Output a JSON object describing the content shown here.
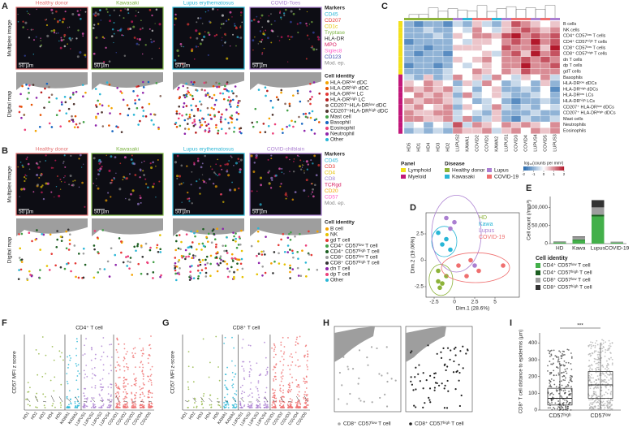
{
  "panel_letters": [
    "A",
    "B",
    "C",
    "D",
    "E",
    "F",
    "G",
    "H",
    "I"
  ],
  "panels": {
    "A": {
      "columns": [
        {
          "title": "Healthy donor",
          "color": "#e57373"
        },
        {
          "title": "Kawasaki",
          "color": "#7cb342"
        },
        {
          "title": "Lupus erythematosus",
          "color": "#29b6d6"
        },
        {
          "title": "COVID-Toes",
          "color": "#ab7fd1"
        }
      ],
      "row_labels": [
        "Multiplex image",
        "Digital map"
      ],
      "scale_bar": "50 µm",
      "markers_title": "Markers",
      "markers": [
        {
          "name": "CD45",
          "color": "#29b6d6"
        },
        {
          "name": "CD207",
          "color": "#e53935"
        },
        {
          "name": "CD1c",
          "color": "#e6c200"
        },
        {
          "name": "Tryptase",
          "color": "#7cb342"
        },
        {
          "name": "HLA-DR",
          "color": "#222222"
        },
        {
          "name": "MPO",
          "color": "#d81b60"
        },
        {
          "name": "Siglec8",
          "color": "#ff5fc8"
        },
        {
          "name": "CD123",
          "color": "#3949ab"
        },
        {
          "name": "Mod. ep.",
          "color": "#888888"
        }
      ],
      "identity_title": "Cell identity",
      "identities": [
        {
          "name": "HLA-DRˡᵒʷ dDC",
          "color": "#f4a300"
        },
        {
          "name": "HLA-DRʰⁱᵍʰ dDC",
          "color": "#e65100"
        },
        {
          "name": "HLA-DRˡᵒʷ LC",
          "color": "#e53935"
        },
        {
          "name": "HLA-DRʰⁱᵍʰ LC",
          "color": "#b71c1c"
        },
        {
          "name": "CD207⁺HLA-DRˡᵒʷ dDC",
          "color": "#8d6e63"
        },
        {
          "name": "CD207⁺HLA-DRʰⁱᵍʰ dDC",
          "color": "#4e342e"
        },
        {
          "name": "Mast cell",
          "color": "#43a047"
        },
        {
          "name": "Basophil",
          "color": "#1565c0"
        },
        {
          "name": "Eosinophil",
          "color": "#ec407a"
        },
        {
          "name": "Neutrophil",
          "color": "#8e24aa"
        },
        {
          "name": "Other",
          "color": "#29b6d6"
        }
      ]
    },
    "B": {
      "columns": [
        {
          "title": "Healthy donor",
          "color": "#e57373"
        },
        {
          "title": "Kawasaki",
          "color": "#7cb342"
        },
        {
          "title": "Lupus erythematosus",
          "color": "#29b6d6"
        },
        {
          "title": "COVID-chilblain",
          "color": "#ab7fd1"
        }
      ],
      "row_labels": [
        "Multiplex image",
        "Digital map"
      ],
      "scale_bar": "50 µm",
      "markers_title": "Markers",
      "markers": [
        {
          "name": "CD45",
          "color": "#29b6d6"
        },
        {
          "name": "CD3",
          "color": "#e53935"
        },
        {
          "name": "CD4",
          "color": "#e6c200"
        },
        {
          "name": "CD8",
          "color": "#9c7fd1"
        },
        {
          "name": "TCRgd",
          "color": "#d81b60"
        },
        {
          "name": "CD20",
          "color": "#f4a300"
        },
        {
          "name": "CD57",
          "color": "#ff5fc8"
        },
        {
          "name": "Mod. ep.",
          "color": "#888888"
        }
      ],
      "identity_title": "Cell identity",
      "identities": [
        {
          "name": "B cell",
          "color": "#f4a300"
        },
        {
          "name": "NK",
          "color": "#e6c200"
        },
        {
          "name": "gd T cell",
          "color": "#e53935"
        },
        {
          "name": "CD4⁺ CD57ˡᵒʷ T cell",
          "color": "#43a047"
        },
        {
          "name": "CD4⁺ CD57ʰⁱᵍʰ T cell",
          "color": "#1b5e20"
        },
        {
          "name": "CD8⁺ CD57ˡᵒʷ T cell",
          "color": "#9e9e9e"
        },
        {
          "name": "CD8⁺ CD57ʰⁱᵍʰ T cell",
          "color": "#333333"
        },
        {
          "name": "dn T cell",
          "color": "#8e24aa"
        },
        {
          "name": "dp T cell",
          "color": "#ec407a"
        },
        {
          "name": "Other",
          "color": "#29b6d6"
        }
      ]
    },
    "F": {
      "title": "CD4⁺ T cell",
      "y_label": "CD57 MFI z score",
      "categories": [
        "HD1",
        "HD2",
        "HD3",
        "HD4",
        "HD5",
        "KAWA1",
        "KAWA2",
        "LUPUS1",
        "LUPUS2",
        "LUPUS3",
        "LUPUS4",
        "COVID1",
        "COVID2",
        "COVID3",
        "COVID4",
        "COVID5"
      ],
      "category_group": [
        0,
        0,
        0,
        0,
        0,
        1,
        1,
        2,
        2,
        2,
        2,
        3,
        3,
        3,
        3,
        3
      ],
      "group_colors": [
        "#8db33a",
        "#29b6d6",
        "#ab7fd1",
        "#ef6f6f"
      ]
    },
    "G": {
      "title": "CD8⁺ T cell",
      "y_label": "CD57 MFI z-score",
      "categories": [
        "HD1",
        "HD2",
        "HD3",
        "HD4",
        "HD5",
        "KAWA1",
        "KAWA2",
        "LUPUS1",
        "LUPUS2",
        "LUPUS3",
        "LUPUS4",
        "COVID1",
        "COVID2",
        "COVID3",
        "COVID4",
        "COVID5"
      ],
      "category_group": [
        0,
        0,
        0,
        0,
        0,
        1,
        1,
        2,
        2,
        2,
        2,
        3,
        3,
        3,
        3,
        3
      ],
      "group_colors": [
        "#8db33a",
        "#29b6d6",
        "#ab7fd1",
        "#ef6f6f"
      ]
    },
    "H": {
      "legends": [
        {
          "name": "CD8⁺ CD57ˡᵒʷ T cell",
          "color": "#aaaaaa"
        },
        {
          "name": "CD8⁺ CD57ʰⁱᵍʰ T cell",
          "color": "#222222"
        }
      ]
    }
  },
  "chart_data": [
    {
      "type": "heatmap",
      "columns": [
        "HD5",
        "HD1",
        "HD4",
        "HD3",
        "HD2",
        "LUPUS2",
        "KAWA1",
        "COVID2",
        "COVID1",
        "KAWA2",
        "LUPUS1",
        "COVID3",
        "COVID4",
        "LUPUS4",
        "COVID5",
        "LUPUS3"
      ],
      "column_group": [
        0,
        0,
        0,
        0,
        0,
        2,
        1,
        3,
        3,
        1,
        2,
        3,
        3,
        2,
        3,
        2
      ],
      "rows": [
        "B cells",
        "NK cells",
        "CD4⁺ CD57ˡᵒʷ T cells",
        "CD4⁺ CD57ʰⁱᵍʰ T cells",
        "CD8⁺ CD57ˡᵒʷ T cells",
        "CD8⁺ CD57ʰⁱᵍʰ T cells",
        "dn T cells",
        "dp T cells",
        "gdT cells",
        "Basophils",
        "HLA-DRˡᵒʷ dDCs",
        "HLA-DRʰⁱᵍʰ dDCs",
        "HLA-DRˡᵒʷ LCs",
        "HLA-DRʰⁱᵍʰ LCs",
        "CD207⁺ HLA-DRˡᵒʷ dDCs",
        "CD207⁺ HLA-DRʰⁱᵍʰ dDCs",
        "Mast cells",
        "Neutrophils",
        "Eosinophils"
      ],
      "row_group": [
        0,
        0,
        0,
        0,
        0,
        0,
        0,
        0,
        0,
        1,
        1,
        1,
        1,
        1,
        1,
        1,
        1,
        1,
        1
      ],
      "values": [
        [
          -1,
          -1.5,
          -1,
          -1,
          -1.5,
          -0.5,
          -1,
          0.5,
          -0.5,
          -1,
          0.5,
          1.5,
          1,
          0.5,
          0,
          0.5
        ],
        [
          -1,
          -1,
          -0.5,
          -1,
          -1,
          0,
          -0.5,
          1,
          0,
          -0.5,
          0.5,
          1,
          1.5,
          1,
          0.5,
          1
        ],
        [
          -1,
          -1,
          -1,
          -0.5,
          -1,
          0.5,
          0,
          1,
          1,
          0.5,
          1.5,
          2,
          1,
          1.5,
          1,
          1.5
        ],
        [
          -1.5,
          -1,
          -1,
          -1,
          -1,
          0,
          -0.5,
          0.5,
          0.5,
          0,
          1,
          1.5,
          1,
          2,
          1,
          1.5
        ],
        [
          -1,
          -1,
          -1.5,
          -1,
          -1,
          0.5,
          0.5,
          0.5,
          0,
          0,
          1.5,
          1,
          1,
          1.5,
          0.5,
          2
        ],
        [
          -1,
          -1.5,
          -1,
          -1,
          -1.5,
          0,
          0,
          0,
          0.5,
          -0.5,
          1,
          1.5,
          0.5,
          2,
          1,
          1.5
        ],
        [
          -1,
          -1,
          -1,
          -1,
          -1,
          0.5,
          0,
          0.5,
          1,
          0,
          1,
          1,
          1.5,
          1,
          1.5,
          1
        ],
        [
          -1.5,
          -1,
          -1,
          -1.5,
          -1,
          0,
          -0.5,
          0,
          0.5,
          0,
          1,
          1,
          2,
          1,
          1,
          1.5
        ],
        [
          -1,
          -1,
          -1,
          -1,
          -0.5,
          0,
          0,
          1,
          0.5,
          0,
          1,
          0.5,
          1.5,
          1,
          1,
          1
        ],
        [
          -0.5,
          -1,
          0.5,
          -1,
          -0.5,
          1,
          0,
          0.5,
          -0.5,
          1,
          0,
          -0.5,
          0.5,
          0,
          1,
          -0.5
        ],
        [
          0.5,
          0,
          1,
          0.5,
          0,
          -1,
          0.5,
          -0.5,
          1,
          0,
          -1,
          -0.5,
          0,
          -1,
          0.5,
          -1
        ],
        [
          1,
          0.5,
          1,
          0.5,
          1,
          -0.5,
          0,
          -1,
          0,
          0.5,
          -1,
          -1,
          -0.5,
          -1,
          0,
          -1.5
        ],
        [
          0,
          1,
          0.5,
          1,
          0.5,
          -1,
          1,
          -0.5,
          0,
          0.5,
          -0.5,
          -1,
          -1,
          -0.5,
          0,
          -1
        ],
        [
          1,
          0.5,
          1,
          1,
          0.5,
          -0.5,
          0,
          -1,
          -0.5,
          0,
          -1,
          -1.5,
          -1,
          -1,
          -0.5,
          -1
        ],
        [
          0.5,
          1,
          0,
          0.5,
          1,
          -1,
          0.5,
          0,
          -0.5,
          1,
          -0.5,
          -1,
          -0.5,
          -1,
          0,
          -0.5
        ],
        [
          1,
          0.5,
          0.5,
          1,
          1,
          -0.5,
          0,
          -0.5,
          -1,
          0.5,
          -1,
          -1,
          -1,
          -0.5,
          -1,
          -1
        ],
        [
          1,
          1,
          0.5,
          0.5,
          1,
          -0.5,
          1,
          -1,
          -0.5,
          0.5,
          -1,
          -1.5,
          -0.5,
          -1,
          -1,
          -0.5
        ],
        [
          -0.5,
          0,
          -1,
          0,
          -0.5,
          1.5,
          -0.5,
          1,
          0.5,
          0,
          1,
          0.5,
          1,
          0.5,
          0,
          1
        ],
        [
          -1,
          -0.5,
          -1,
          -0.5,
          -1,
          1,
          0.5,
          0.5,
          1,
          -0.5,
          0.5,
          1,
          0,
          1,
          0.5,
          1
        ]
      ],
      "zlim": [
        -2,
        2
      ],
      "colors": [
        "#2166ac",
        "#ffffff",
        "#b2182b"
      ],
      "legend_title": "log₁₀(counts per mm²)",
      "legend_ticks": [
        -2,
        -1,
        0,
        1,
        2
      ],
      "panel_title": "Panel",
      "panel_legend": [
        {
          "name": "Lymphoid",
          "color": "#f2e01c"
        },
        {
          "name": "Myeloid",
          "color": "#c2187a"
        }
      ],
      "disease_title": "Disease",
      "disease_legend": [
        {
          "name": "Healthy donor",
          "color": "#8db33a"
        },
        {
          "name": "Kawasaki",
          "color": "#29b6d6"
        },
        {
          "name": "Lupus",
          "color": "#ab7fd1"
        },
        {
          "name": "COVID-19",
          "color": "#ef6f6f"
        }
      ]
    },
    {
      "type": "scatter",
      "x_label": "Dim.1 (28.6%)",
      "y_label": "Dim.2 (19.06%)",
      "xlim": [
        -3.5,
        8
      ],
      "ylim": [
        -3.5,
        4.5
      ],
      "xticks": [
        -2.5,
        0,
        2.5,
        5
      ],
      "yticks": [
        -2.5,
        0,
        2.5
      ],
      "series": [
        {
          "name": "HD",
          "color": "#8db33a",
          "x": [
            -2,
            -1.5,
            -2,
            -1,
            -1.8
          ],
          "y": [
            -2,
            -2.2,
            -1,
            -1.5,
            -2.6
          ]
        },
        {
          "name": "Kawa",
          "color": "#29b6d6",
          "x": [
            -1.5,
            -1,
            -0.5,
            -2
          ],
          "y": [
            1.5,
            2,
            1,
            2.6
          ]
        },
        {
          "name": "Lupus",
          "color": "#ab7fd1",
          "x": [
            -0.5,
            2.5,
            0,
            -1
          ],
          "y": [
            3,
            -0.5,
            3.6,
            4
          ]
        },
        {
          "name": "COVID-19",
          "color": "#ef6f6f",
          "x": [
            0.5,
            2,
            3,
            6,
            1.5
          ],
          "y": [
            -0.5,
            0,
            -1,
            -0.5,
            -1.5
          ]
        }
      ]
    },
    {
      "type": "bar",
      "stacked": true,
      "y_label": "Cell count (/mm³)",
      "categories": [
        "HD",
        "Kawa",
        "Lupus",
        "COVID-19"
      ],
      "ylim": [
        0,
        130000
      ],
      "yticks": [
        0,
        {
          "value": 50000,
          "label": "50,000"
        },
        {
          "value": 100000,
          "label": "100,000"
        }
      ],
      "legend_title": "Cell identity",
      "series": [
        {
          "name": "CD4⁺ CD57ˡᵒʷ T cell",
          "color": "#43b04a",
          "values": [
            3000,
            10000,
            75000,
            2500
          ]
        },
        {
          "name": "CD4⁺ CD57ʰⁱᵍʰ T cell",
          "color": "#1b5e20",
          "values": [
            500,
            1500,
            5000,
            500
          ]
        },
        {
          "name": "CD8⁺ CD57ˡᵒʷ T cell",
          "color": "#9e9e9e",
          "values": [
            2000,
            6000,
            20000,
            1500
          ]
        },
        {
          "name": "CD8⁺ CD57ʰⁱᵍʰ T cell",
          "color": "#333333",
          "values": [
            500,
            2000,
            20000,
            500
          ]
        }
      ]
    },
    {
      "type": "box",
      "y_label": "CD8⁺ T cell distance to epidermis (µm)",
      "categories": [
        "CD57ʰⁱᵍʰ",
        "CD57ˡᵒʷ"
      ],
      "colors": [
        "#333333",
        "#aaaaaa"
      ],
      "ylim": [
        0,
        460
      ],
      "yticks": [
        0,
        100,
        200,
        300,
        400
      ],
      "annotation": "***",
      "boxes": [
        {
          "min": 0,
          "q1": 30,
          "median": 70,
          "q3": 130,
          "max": 280
        },
        {
          "min": 0,
          "q1": 70,
          "median": 150,
          "q3": 230,
          "max": 400
        }
      ]
    }
  ]
}
